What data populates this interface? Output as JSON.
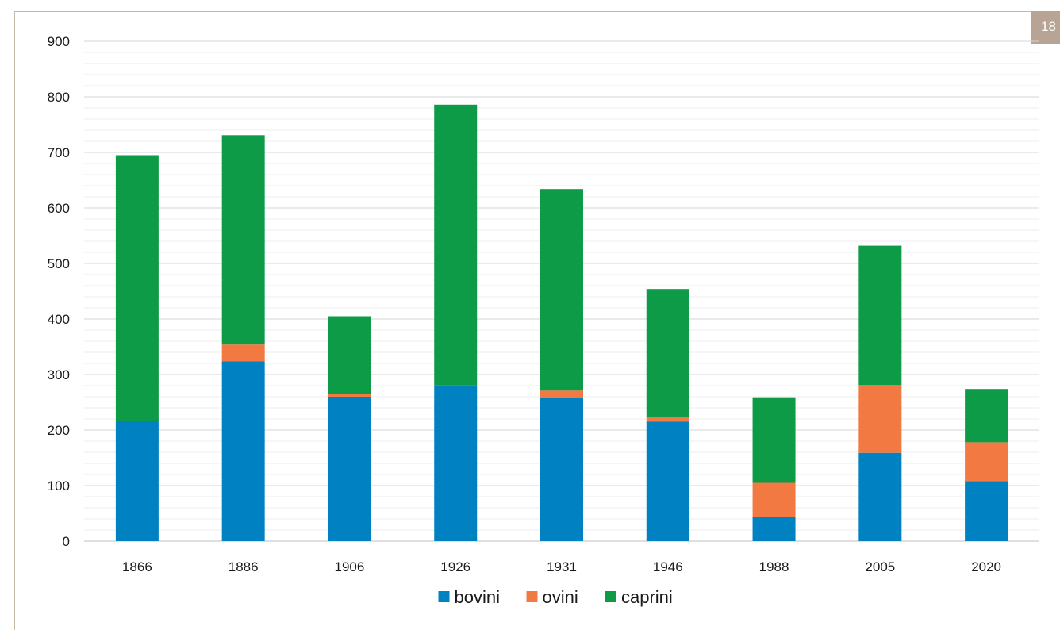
{
  "page": {
    "badge": "18"
  },
  "chart_data": {
    "type": "bar",
    "stacked": true,
    "categories": [
      "1866",
      "1886",
      "1906",
      "1926",
      "1931",
      "1946",
      "1988",
      "2005",
      "2020"
    ],
    "series": [
      {
        "name": "bovini",
        "color": "#0081c2",
        "values": [
          216,
          324,
          260,
          281,
          258,
          215,
          44,
          159,
          108
        ]
      },
      {
        "name": "ovini",
        "color": "#f27a42",
        "values": [
          0,
          30,
          5,
          0,
          13,
          9,
          61,
          122,
          70
        ]
      },
      {
        "name": "caprini",
        "color": "#0d9b48",
        "values": [
          479,
          377,
          140,
          505,
          363,
          230,
          154,
          251,
          96
        ]
      }
    ],
    "ylim": [
      0,
      900
    ],
    "yticks": [
      0,
      100,
      200,
      300,
      400,
      500,
      600,
      700,
      800,
      900
    ],
    "ytick_labels": [
      "0",
      "100",
      "200",
      "300",
      "400",
      "500",
      "600",
      "700",
      "800",
      "900"
    ],
    "minor_step": 20,
    "grid": true,
    "legend": "bottom",
    "title": "",
    "xlabel": "",
    "ylabel": ""
  }
}
